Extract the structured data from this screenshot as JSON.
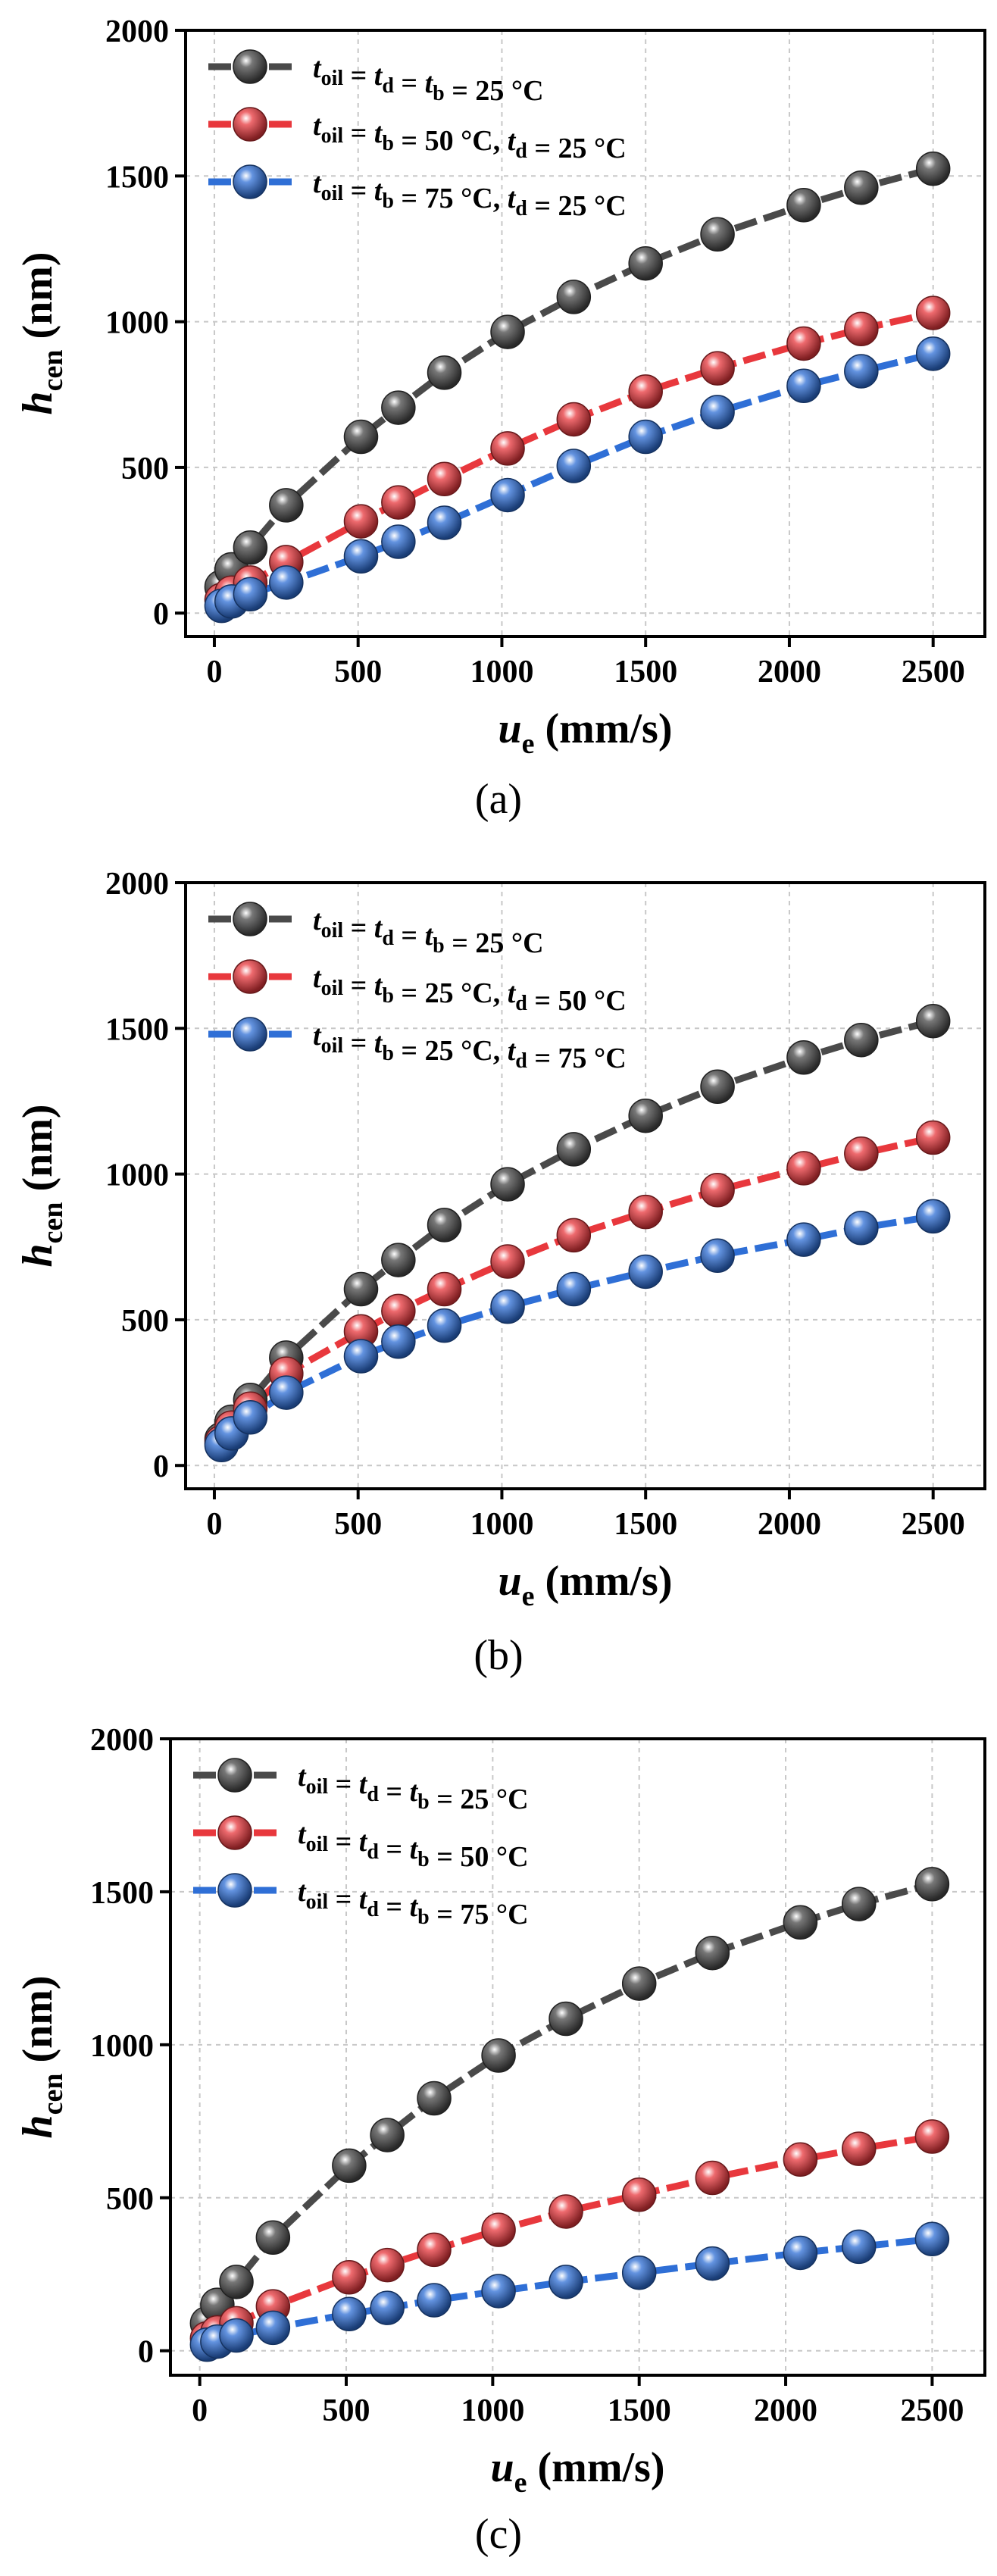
{
  "figure_title": "",
  "chart_data": [
    {
      "type": "line",
      "caption": "(a)",
      "ylabel_main": "h",
      "ylabel_sub": "cen",
      "ylabel_unit": " (nm)",
      "xlabel_main": "u",
      "xlabel_sub": "e",
      "xlabel_unit": " (mm/s)",
      "xlim": [
        -100,
        2680
      ],
      "ylim": [
        -80,
        2000
      ],
      "xticks": [
        0,
        500,
        1000,
        1500,
        2000,
        2500
      ],
      "yticks": [
        0,
        500,
        1000,
        1500,
        2000
      ],
      "grid": true,
      "legend_position": "top-left",
      "x": [
        25,
        60,
        125,
        250,
        510,
        640,
        800,
        1020,
        1250,
        1500,
        1750,
        2050,
        2250,
        2500
      ],
      "series": [
        {
          "name": "toil = td = tb = 25 °C",
          "color": "#4a4a4a",
          "legend_parts": [
            [
              "t",
              "oil"
            ],
            [
              " = ",
              ""
            ],
            [
              "t",
              "d"
            ],
            [
              " = ",
              ""
            ],
            [
              "t",
              "b"
            ],
            [
              " = 25 °C",
              ""
            ]
          ],
          "values": [
            90,
            150,
            225,
            370,
            605,
            705,
            825,
            965,
            1085,
            1200,
            1300,
            1400,
            1460,
            1525
          ]
        },
        {
          "name": "toil = tb = 50 °C, td = 25 °C",
          "color": "#e8383d",
          "legend_parts": [
            [
              "t",
              "oil"
            ],
            [
              " = ",
              ""
            ],
            [
              "t",
              "b"
            ],
            [
              " = 50 °C, ",
              ""
            ],
            [
              "t",
              "d"
            ],
            [
              " = 25 °C",
              ""
            ]
          ],
          "values": [
            45,
            70,
            105,
            175,
            315,
            380,
            460,
            565,
            665,
            760,
            840,
            925,
            975,
            1030
          ]
        },
        {
          "name": "toil = tb = 75 °C, td = 25 °C",
          "color": "#2f6fd6",
          "legend_parts": [
            [
              "t",
              "oil"
            ],
            [
              " = ",
              ""
            ],
            [
              "t",
              "b"
            ],
            [
              " = 75 °C, ",
              ""
            ],
            [
              "t",
              "d"
            ],
            [
              " = 25 °C",
              ""
            ]
          ],
          "values": [
            25,
            40,
            65,
            105,
            195,
            245,
            310,
            405,
            505,
            605,
            690,
            780,
            830,
            890
          ]
        }
      ]
    },
    {
      "type": "line",
      "caption": "(b)",
      "ylabel_main": "h",
      "ylabel_sub": "cen",
      "ylabel_unit": " (nm)",
      "xlabel_main": "u",
      "xlabel_sub": "e",
      "xlabel_unit": " (mm/s)",
      "xlim": [
        -100,
        2680
      ],
      "ylim": [
        -80,
        2000
      ],
      "xticks": [
        0,
        500,
        1000,
        1500,
        2000,
        2500
      ],
      "yticks": [
        0,
        500,
        1000,
        1500,
        2000
      ],
      "grid": true,
      "legend_position": "top-left",
      "x": [
        25,
        60,
        125,
        250,
        510,
        640,
        800,
        1020,
        1250,
        1500,
        1750,
        2050,
        2250,
        2500
      ],
      "series": [
        {
          "name": "toil = td = tb = 25 °C",
          "color": "#4a4a4a",
          "legend_parts": [
            [
              "t",
              "oil"
            ],
            [
              " = ",
              ""
            ],
            [
              "t",
              "d"
            ],
            [
              " = ",
              ""
            ],
            [
              "t",
              "b"
            ],
            [
              " = 25 °C",
              ""
            ]
          ],
          "values": [
            90,
            150,
            225,
            370,
            605,
            705,
            825,
            965,
            1085,
            1200,
            1300,
            1400,
            1460,
            1525
          ]
        },
        {
          "name": "toil = tb = 25 °C, td = 50 °C",
          "color": "#e8383d",
          "legend_parts": [
            [
              "t",
              "oil"
            ],
            [
              " = ",
              ""
            ],
            [
              "t",
              "b"
            ],
            [
              " = 25 °C, ",
              ""
            ],
            [
              "t",
              "d"
            ],
            [
              " = 50 °C",
              ""
            ]
          ],
          "values": [
            80,
            130,
            195,
            315,
            460,
            530,
            605,
            700,
            790,
            870,
            945,
            1020,
            1070,
            1125
          ]
        },
        {
          "name": "toil = tb = 25 °C, td = 75 °C",
          "color": "#2f6fd6",
          "legend_parts": [
            [
              "t",
              "oil"
            ],
            [
              " = ",
              ""
            ],
            [
              "t",
              "b"
            ],
            [
              " = 25 °C, ",
              ""
            ],
            [
              "t",
              "d"
            ],
            [
              " = 75 °C",
              ""
            ]
          ],
          "values": [
            70,
            110,
            165,
            250,
            375,
            425,
            480,
            545,
            605,
            665,
            720,
            775,
            815,
            855
          ]
        }
      ]
    },
    {
      "type": "line",
      "caption": "(c)",
      "ylabel_main": "h",
      "ylabel_sub": "cen",
      "ylabel_unit": " (nm)",
      "xlabel_main": "u",
      "xlabel_sub": "e",
      "xlabel_unit": " (mm/s)",
      "xlim": [
        -100,
        2680
      ],
      "ylim": [
        -80,
        2000
      ],
      "xticks": [
        0,
        500,
        1000,
        1500,
        2000,
        2500
      ],
      "yticks": [
        0,
        500,
        1000,
        1500,
        2000
      ],
      "grid": true,
      "legend_position": "top-left",
      "x": [
        25,
        60,
        125,
        250,
        510,
        640,
        800,
        1020,
        1250,
        1500,
        1750,
        2050,
        2250,
        2500
      ],
      "series": [
        {
          "name": "toil = td = tb = 25 °C",
          "color": "#4a4a4a",
          "legend_parts": [
            [
              "t",
              "oil"
            ],
            [
              " = ",
              ""
            ],
            [
              "t",
              "d"
            ],
            [
              " = ",
              ""
            ],
            [
              "t",
              "b"
            ],
            [
              " = 25 °C",
              ""
            ]
          ],
          "values": [
            90,
            150,
            225,
            370,
            605,
            705,
            825,
            965,
            1085,
            1200,
            1300,
            1400,
            1460,
            1525
          ]
        },
        {
          "name": "toil = td = tb = 50 °C",
          "color": "#e8383d",
          "legend_parts": [
            [
              "t",
              "oil"
            ],
            [
              " = ",
              ""
            ],
            [
              "t",
              "d"
            ],
            [
              " = ",
              ""
            ],
            [
              "t",
              "b"
            ],
            [
              " = 50 °C",
              ""
            ]
          ],
          "values": [
            40,
            60,
            90,
            145,
            240,
            280,
            330,
            395,
            455,
            510,
            565,
            625,
            660,
            700
          ]
        },
        {
          "name": "toil = td = tb = 75 °C",
          "color": "#2f6fd6",
          "legend_parts": [
            [
              "t",
              "oil"
            ],
            [
              " = ",
              ""
            ],
            [
              "t",
              "d"
            ],
            [
              " = ",
              ""
            ],
            [
              "t",
              "b"
            ],
            [
              " = 75 °C",
              ""
            ]
          ],
          "values": [
            20,
            30,
            50,
            75,
            120,
            140,
            165,
            195,
            225,
            255,
            285,
            320,
            340,
            365
          ]
        }
      ]
    }
  ]
}
